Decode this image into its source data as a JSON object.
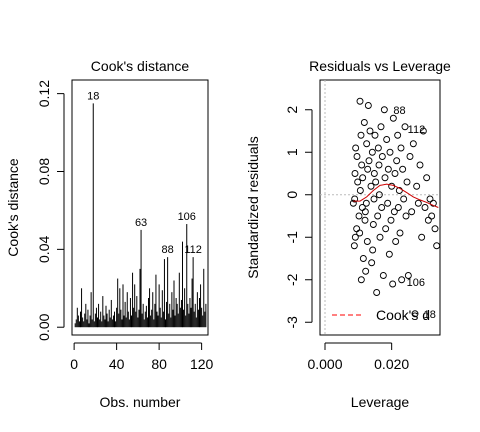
{
  "chart_data": [
    {
      "type": "bar",
      "title": "Cook's distance",
      "xlabel": "Obs. number",
      "ylabel": "Cook's distance",
      "xlim": [
        -2,
        126
      ],
      "ylim": [
        -0.004,
        0.127
      ],
      "xticks": [
        0,
        40,
        80,
        120
      ],
      "xtick_labels": [
        "0",
        "40",
        "80",
        "120"
      ],
      "yticks": [
        0.0,
        0.04,
        0.08,
        0.12
      ],
      "ytick_labels": [
        "0.00",
        "0.04",
        "0.08",
        "0.12"
      ],
      "x": [
        1,
        2,
        3,
        4,
        5,
        6,
        7,
        8,
        9,
        10,
        11,
        12,
        13,
        14,
        15,
        16,
        17,
        18,
        19,
        20,
        21,
        22,
        23,
        24,
        25,
        26,
        27,
        28,
        29,
        30,
        31,
        32,
        33,
        34,
        35,
        36,
        37,
        38,
        39,
        40,
        41,
        42,
        43,
        44,
        45,
        46,
        47,
        48,
        49,
        50,
        51,
        52,
        53,
        54,
        55,
        56,
        57,
        58,
        59,
        60,
        61,
        62,
        63,
        64,
        65,
        66,
        67,
        68,
        69,
        70,
        71,
        72,
        73,
        74,
        75,
        76,
        77,
        78,
        79,
        80,
        81,
        82,
        83,
        84,
        85,
        86,
        87,
        88,
        89,
        90,
        91,
        92,
        93,
        94,
        95,
        96,
        97,
        98,
        99,
        100,
        101,
        102,
        103,
        104,
        105,
        106,
        107,
        108,
        109,
        110,
        111,
        112,
        113,
        114,
        115,
        116,
        117,
        118,
        119,
        120,
        121,
        122,
        123,
        124
      ],
      "values": [
        0.002,
        0.004,
        0.01,
        0.006,
        0.003,
        0.008,
        0.02,
        0.005,
        0.003,
        0.007,
        0.012,
        0.004,
        0.009,
        0.002,
        0.006,
        0.018,
        0.004,
        0.115,
        0.003,
        0.007,
        0.01,
        0.005,
        0.012,
        0.004,
        0.008,
        0.003,
        0.016,
        0.006,
        0.004,
        0.011,
        0.007,
        0.003,
        0.009,
        0.005,
        0.014,
        0.004,
        0.006,
        0.008,
        0.003,
        0.01,
        0.025,
        0.007,
        0.02,
        0.009,
        0.004,
        0.022,
        0.006,
        0.013,
        0.005,
        0.018,
        0.008,
        0.004,
        0.015,
        0.006,
        0.028,
        0.01,
        0.022,
        0.008,
        0.016,
        0.005,
        0.009,
        0.03,
        0.05,
        0.007,
        0.012,
        0.004,
        0.008,
        0.011,
        0.005,
        0.015,
        0.02,
        0.006,
        0.009,
        0.018,
        0.004,
        0.012,
        0.027,
        0.008,
        0.006,
        0.022,
        0.01,
        0.005,
        0.019,
        0.008,
        0.035,
        0.004,
        0.013,
        0.036,
        0.007,
        0.012,
        0.005,
        0.018,
        0.009,
        0.024,
        0.006,
        0.015,
        0.012,
        0.007,
        0.028,
        0.01,
        0.014,
        0.044,
        0.009,
        0.02,
        0.006,
        0.053,
        0.012,
        0.007,
        0.015,
        0.01,
        0.025,
        0.036,
        0.008,
        0.012,
        0.005,
        0.018,
        0.009,
        0.015,
        0.022,
        0.01,
        0.006,
        0.03,
        0.008,
        0.012
      ],
      "labels": [
        {
          "x": 18,
          "y": 0.115,
          "text": "18"
        },
        {
          "x": 63,
          "y": 0.05,
          "text": "63"
        },
        {
          "x": 88,
          "y": 0.036,
          "text": "88"
        },
        {
          "x": 106,
          "y": 0.053,
          "text": "106"
        },
        {
          "x": 112,
          "y": 0.036,
          "text": "112"
        }
      ]
    },
    {
      "type": "scatter",
      "title": "Residuals vs Leverage",
      "xlabel": "Leverage",
      "ylabel": "Standardized residuals",
      "xlim": [
        -0.0015,
        0.0345
      ],
      "ylim": [
        -3.3,
        2.7
      ],
      "xticks": [
        0.0,
        0.02
      ],
      "xtick_labels": [
        "0.000",
        "0.020"
      ],
      "yticks": [
        -3,
        -2,
        -1,
        0,
        1,
        2
      ],
      "ytick_labels": [
        "-3",
        "-2",
        "-1",
        "0",
        "1",
        "2"
      ],
      "legend": {
        "position": "bottom-right",
        "entries": [
          {
            "name": "Cook's d",
            "color": "#ff0000",
            "style": "dashed"
          }
        ]
      },
      "reference_lines": {
        "h": 0,
        "v": 0,
        "color": "#bbbbbb",
        "style": "dotted"
      },
      "smooth_color": "#cc0000",
      "smooth": {
        "x": [
          0.0085,
          0.0105,
          0.0125,
          0.0145,
          0.0165,
          0.0185,
          0.0205,
          0.0225,
          0.0245,
          0.0265,
          0.0285,
          0.0305,
          0.0325,
          0.034
        ],
        "y": [
          -0.15,
          -0.15,
          -0.05,
          0.1,
          0.22,
          0.25,
          0.22,
          0.15,
          0.05,
          -0.05,
          -0.12,
          -0.18,
          -0.25,
          -0.3
        ]
      },
      "points": [
        [
          0.0085,
          -0.2
        ],
        [
          0.009,
          0.5
        ],
        [
          0.0095,
          -0.8
        ],
        [
          0.0092,
          1.1
        ],
        [
          0.0088,
          -1.2
        ],
        [
          0.0098,
          0.3
        ],
        [
          0.0102,
          -0.5
        ],
        [
          0.0096,
          0.9
        ],
        [
          0.0089,
          -0.1
        ],
        [
          0.0091,
          -1.0
        ],
        [
          0.0105,
          2.2
        ],
        [
          0.0108,
          1.4
        ],
        [
          0.0112,
          -0.3
        ],
        [
          0.011,
          0.7
        ],
        [
          0.0115,
          -1.5
        ],
        [
          0.0104,
          -0.9
        ],
        [
          0.0118,
          1.7
        ],
        [
          0.0106,
          0.1
        ],
        [
          0.0109,
          -2.0
        ],
        [
          0.0113,
          0.4
        ],
        [
          0.012,
          -0.6
        ],
        [
          0.0125,
          1.2
        ],
        [
          0.0122,
          -1.8
        ],
        [
          0.0128,
          0.6
        ],
        [
          0.0124,
          -0.2
        ],
        [
          0.013,
          2.1
        ],
        [
          0.0127,
          -1.1
        ],
        [
          0.0132,
          0.8
        ],
        [
          0.0121,
          -0.4
        ],
        [
          0.0135,
          1.5
        ],
        [
          0.014,
          -1.6
        ],
        [
          0.0138,
          0.2
        ],
        [
          0.0142,
          1.0
        ],
        [
          0.0145,
          -0.7
        ],
        [
          0.0148,
          0.5
        ],
        [
          0.0143,
          -1.3
        ],
        [
          0.015,
          1.4
        ],
        [
          0.0147,
          -0.1
        ],
        [
          0.0152,
          0.3
        ],
        [
          0.0155,
          -2.3
        ],
        [
          0.016,
          1.1
        ],
        [
          0.0158,
          -0.5
        ],
        [
          0.0162,
          0.7
        ],
        [
          0.0165,
          -1.0
        ],
        [
          0.0168,
          1.6
        ],
        [
          0.0163,
          0.0
        ],
        [
          0.017,
          -0.3
        ],
        [
          0.0172,
          0.9
        ],
        [
          0.0175,
          -1.9
        ],
        [
          0.0178,
          2.0
        ],
        [
          0.018,
          0.4
        ],
        [
          0.0182,
          -0.8
        ],
        [
          0.0185,
          1.3
        ],
        [
          0.0188,
          -0.2
        ],
        [
          0.019,
          0.6
        ],
        [
          0.0193,
          -1.4
        ],
        [
          0.0195,
          1.0
        ],
        [
          0.0198,
          -0.6
        ],
        [
          0.02,
          0.2
        ],
        [
          0.0203,
          -2.1
        ],
        [
          0.0205,
          1.8
        ],
        [
          0.0208,
          -0.4
        ],
        [
          0.021,
          0.5
        ],
        [
          0.0212,
          -1.1
        ],
        [
          0.0215,
          0.8
        ],
        [
          0.0218,
          1.4
        ],
        [
          0.022,
          -0.3
        ],
        [
          0.0223,
          0.1
        ],
        [
          0.0225,
          -0.9
        ],
        [
          0.0228,
          1.1
        ],
        [
          0.023,
          -2.0
        ],
        [
          0.0233,
          0.6
        ],
        [
          0.0236,
          -0.1
        ],
        [
          0.024,
          1.6
        ],
        [
          0.0243,
          -0.5
        ],
        [
          0.0246,
          0.3
        ],
        [
          0.025,
          -1.9
        ],
        [
          0.0255,
          0.9
        ],
        [
          0.026,
          -0.4
        ],
        [
          0.0265,
          1.2
        ],
        [
          0.027,
          -2.8
        ],
        [
          0.0275,
          0.2
        ],
        [
          0.028,
          -0.2
        ],
        [
          0.0285,
          0.7
        ],
        [
          0.029,
          -1.0
        ],
        [
          0.0295,
          1.5
        ],
        [
          0.03,
          -0.3
        ],
        [
          0.0305,
          0.4
        ],
        [
          0.031,
          -0.6
        ],
        [
          0.0315,
          -0.1
        ],
        [
          0.032,
          -0.5
        ],
        [
          0.0325,
          -0.2
        ],
        [
          0.033,
          -0.8
        ],
        [
          0.0335,
          -1.2
        ]
      ],
      "labels": [
        {
          "x": 0.0205,
          "y": 2.0,
          "text": "88"
        },
        {
          "x": 0.0248,
          "y": 1.55,
          "text": "112"
        },
        {
          "x": 0.0245,
          "y": -2.05,
          "text": "106"
        },
        {
          "x": 0.0296,
          "y": -2.8,
          "text": "18"
        }
      ]
    }
  ]
}
